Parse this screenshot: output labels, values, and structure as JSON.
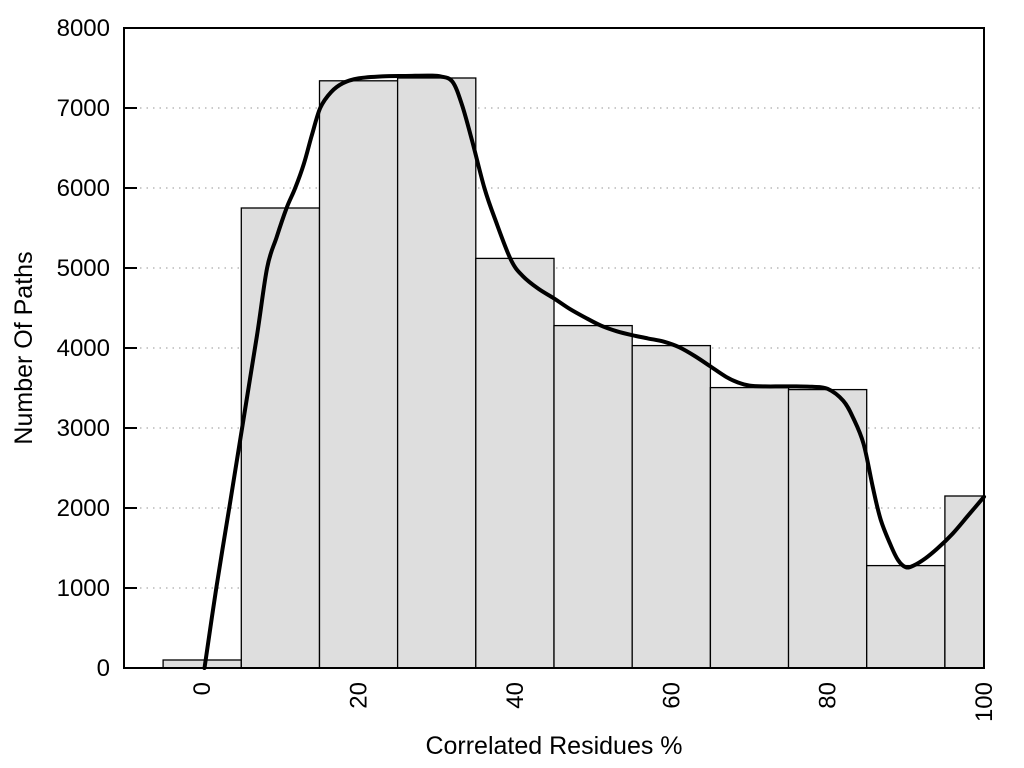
{
  "chart_data": {
    "type": "bar",
    "subtype": "histogram-with-smooth-curve",
    "title": "",
    "xlabel": "Correlated Residues %",
    "ylabel": "Number Of Paths",
    "xlim": [
      -10,
      100
    ],
    "ylim": [
      0,
      8000
    ],
    "x_ticks": [
      0,
      20,
      40,
      60,
      80,
      100
    ],
    "y_ticks": [
      0,
      1000,
      2000,
      3000,
      4000,
      5000,
      6000,
      7000,
      8000
    ],
    "grid": "horizontal-dotted",
    "legend": "none",
    "bars": {
      "bin_width": 10,
      "bins": [
        {
          "x0": -5,
          "x1": 5,
          "count": 100
        },
        {
          "x0": 5,
          "x1": 15,
          "count": 5750
        },
        {
          "x0": 15,
          "x1": 25,
          "count": 7340
        },
        {
          "x0": 25,
          "x1": 35,
          "count": 7375
        },
        {
          "x0": 35,
          "x1": 45,
          "count": 5120
        },
        {
          "x0": 45,
          "x1": 55,
          "count": 4280
        },
        {
          "x0": 55,
          "x1": 65,
          "count": 4030
        },
        {
          "x0": 65,
          "x1": 75,
          "count": 3505
        },
        {
          "x0": 75,
          "x1": 85,
          "count": 3480
        },
        {
          "x0": 85,
          "x1": 95,
          "count": 1280
        },
        {
          "x0": 95,
          "x1": 100,
          "count": 2150
        }
      ]
    },
    "curve": {
      "name": "smoothed density of paths",
      "points": [
        [
          0.3,
          0
        ],
        [
          1.8,
          1000
        ],
        [
          3.5,
          2020
        ],
        [
          5.1,
          3000
        ],
        [
          7,
          4150
        ],
        [
          8.3,
          5000
        ],
        [
          9.5,
          5380
        ],
        [
          10.8,
          5750
        ],
        [
          11.9,
          6000
        ],
        [
          13,
          6300
        ],
        [
          14,
          6650
        ],
        [
          15.1,
          7000
        ],
        [
          16.5,
          7200
        ],
        [
          18,
          7310
        ],
        [
          20,
          7370
        ],
        [
          23,
          7395
        ],
        [
          26,
          7400
        ],
        [
          29,
          7405
        ],
        [
          30.5,
          7395
        ],
        [
          32,
          7330
        ],
        [
          33.2,
          7050
        ],
        [
          34.5,
          6600
        ],
        [
          36.1,
          6000
        ],
        [
          37.5,
          5600
        ],
        [
          39.5,
          5100
        ],
        [
          41,
          4900
        ],
        [
          43,
          4740
        ],
        [
          45,
          4620
        ],
        [
          47,
          4490
        ],
        [
          49,
          4380
        ],
        [
          51,
          4280
        ],
        [
          53,
          4210
        ],
        [
          55,
          4160
        ],
        [
          57,
          4120
        ],
        [
          59,
          4080
        ],
        [
          61,
          4010
        ],
        [
          63,
          3900
        ],
        [
          65,
          3770
        ],
        [
          67,
          3640
        ],
        [
          68.5,
          3570
        ],
        [
          70,
          3530
        ],
        [
          72,
          3520
        ],
        [
          74,
          3520
        ],
        [
          76,
          3520
        ],
        [
          78,
          3515
        ],
        [
          80,
          3490
        ],
        [
          82,
          3340
        ],
        [
          83.3,
          3120
        ],
        [
          84.6,
          2800
        ],
        [
          85.8,
          2250
        ],
        [
          86.8,
          1850
        ],
        [
          88,
          1550
        ],
        [
          89,
          1350
        ],
        [
          90,
          1260
        ],
        [
          91,
          1280
        ],
        [
          92.5,
          1370
        ],
        [
          94,
          1490
        ],
        [
          96,
          1680
        ],
        [
          98,
          1910
        ],
        [
          100,
          2140
        ]
      ]
    },
    "colors": {
      "bar_fill": "#dedede",
      "bar_stroke": "#000000",
      "curve": "#000000",
      "axis": "#000000",
      "gridline": "#b9b9b9",
      "background": "#ffffff"
    }
  }
}
